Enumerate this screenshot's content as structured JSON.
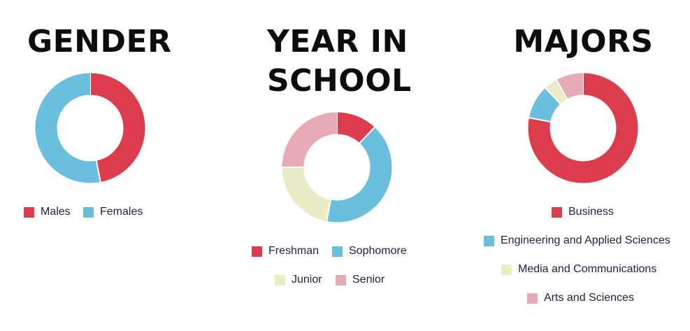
{
  "chart_data": [
    {
      "type": "pie",
      "title": "GENDER",
      "categories": [
        "Males",
        "Females"
      ],
      "values": [
        47,
        53
      ],
      "colors": [
        "#dc3c4b",
        "#6abfdf"
      ]
    },
    {
      "type": "pie",
      "title_lines": [
        "YEAR IN",
        "SCHOOL"
      ],
      "categories": [
        "Freshman",
        "Sophomore",
        "Junior",
        "Senior"
      ],
      "values": [
        12,
        41,
        22,
        25
      ],
      "colors": [
        "#dc3c4b",
        "#6abfdf",
        "#ebebc5",
        "#e8aab5"
      ]
    },
    {
      "type": "pie",
      "title": "MAJORS",
      "categories": [
        "Business",
        "Engineering and Applied Sciences",
        "Media and Communications",
        "Arts and Sciences"
      ],
      "values": [
        78,
        10,
        4,
        8
      ],
      "colors": [
        "#dc3c4b",
        "#6abfdf",
        "#ebebc5",
        "#e8aab5"
      ]
    }
  ]
}
